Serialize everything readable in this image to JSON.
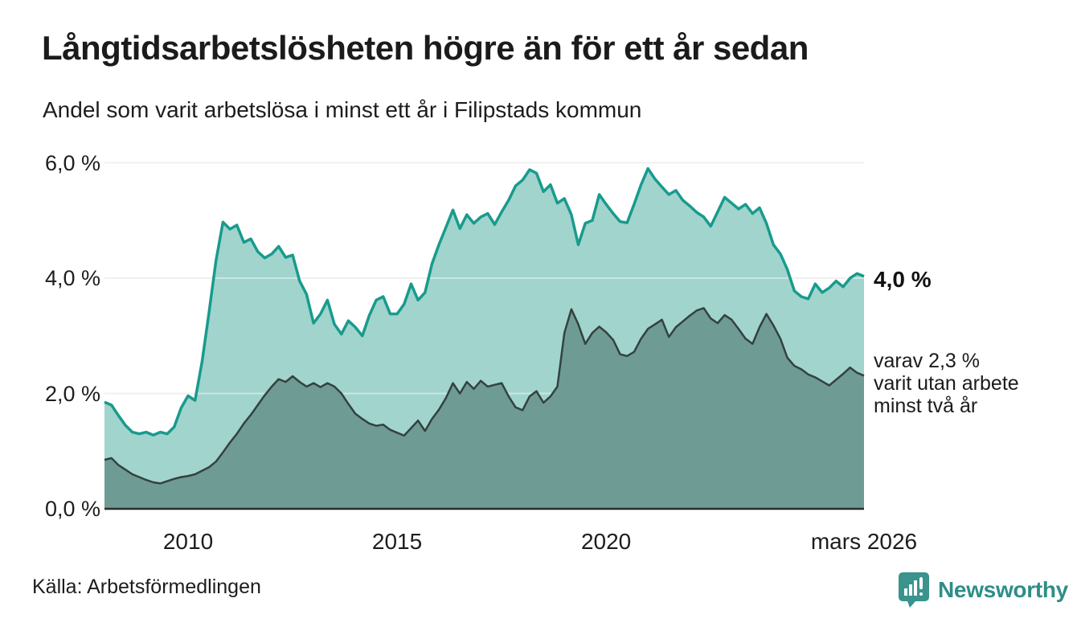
{
  "header": {
    "title": "Långtidsarbetslösheten högre än för ett år sedan",
    "subtitle": "Andel som varit arbetslösa i minst ett år i Filipstads kommun"
  },
  "chart_data": {
    "type": "area",
    "title": "Långtidsarbetslösheten högre än för ett år sedan",
    "subtitle": "Andel som varit arbetslösa i minst ett år i Filipstads kommun",
    "x_range_years": {
      "start": 2008.0,
      "end": 2026.17
    },
    "ylim": [
      0,
      6.2
    ],
    "grid": true,
    "y_axis": {
      "ticks": [
        {
          "value": 6.0,
          "label": "6,0 %"
        },
        {
          "value": 4.0,
          "label": "4,0 %"
        },
        {
          "value": 2.0,
          "label": "2,0 %"
        },
        {
          "value": 0.0,
          "label": "0,0 %"
        }
      ]
    },
    "x_axis": {
      "ticks": [
        {
          "year": 2010,
          "label": "2010"
        },
        {
          "year": 2015,
          "label": "2015"
        },
        {
          "year": 2020,
          "label": "2020"
        },
        {
          "year": 2026.17,
          "label": "mars 2026"
        }
      ]
    },
    "series": [
      {
        "name": "Andel arbetslösa minst ett år",
        "fill": "#a1d4cd",
        "line": "#189b8d",
        "line_width": 3.5,
        "end_value_label": "4,0 %",
        "values": [
          1.85,
          1.8,
          1.62,
          1.45,
          1.33,
          1.3,
          1.33,
          1.28,
          1.33,
          1.3,
          1.42,
          1.75,
          1.96,
          1.88,
          2.55,
          3.4,
          4.3,
          4.97,
          4.85,
          4.92,
          4.62,
          4.68,
          4.46,
          4.35,
          4.42,
          4.55,
          4.36,
          4.4,
          3.95,
          3.72,
          3.22,
          3.38,
          3.62,
          3.2,
          3.03,
          3.26,
          3.15,
          3.0,
          3.35,
          3.62,
          3.68,
          3.38,
          3.38,
          3.55,
          3.9,
          3.62,
          3.75,
          4.25,
          4.58,
          4.88,
          5.18,
          4.86,
          5.1,
          4.95,
          5.06,
          5.12,
          4.93,
          5.15,
          5.35,
          5.6,
          5.7,
          5.88,
          5.82,
          5.5,
          5.62,
          5.3,
          5.38,
          5.1,
          4.58,
          4.95,
          5.0,
          5.45,
          5.28,
          5.12,
          4.98,
          4.96,
          5.28,
          5.62,
          5.9,
          5.72,
          5.58,
          5.45,
          5.52,
          5.35,
          5.25,
          5.14,
          5.06,
          4.9,
          5.15,
          5.4,
          5.3,
          5.2,
          5.28,
          5.12,
          5.22,
          4.95,
          4.58,
          4.42,
          4.15,
          3.78,
          3.68,
          3.64,
          3.9,
          3.75,
          3.83,
          3.95,
          3.85,
          4.0,
          4.08,
          4.03
        ]
      },
      {
        "name": "varav utan arbete minst två år",
        "fill": "#6f9b95",
        "line": "#33423f",
        "line_width": 2.5,
        "end_value_label": "varav 2,3 % varit utan arbete minst två år",
        "values": [
          0.85,
          0.88,
          0.76,
          0.68,
          0.6,
          0.55,
          0.5,
          0.46,
          0.44,
          0.48,
          0.52,
          0.55,
          0.57,
          0.6,
          0.66,
          0.72,
          0.82,
          0.98,
          1.15,
          1.3,
          1.48,
          1.63,
          1.8,
          1.97,
          2.12,
          2.25,
          2.2,
          2.3,
          2.2,
          2.12,
          2.18,
          2.11,
          2.18,
          2.12,
          2.0,
          1.82,
          1.65,
          1.56,
          1.48,
          1.44,
          1.46,
          1.37,
          1.32,
          1.27,
          1.4,
          1.53,
          1.35,
          1.56,
          1.72,
          1.92,
          2.18,
          2.0,
          2.2,
          2.08,
          2.22,
          2.12,
          2.15,
          2.18,
          1.95,
          1.76,
          1.71,
          1.95,
          2.04,
          1.84,
          1.95,
          2.12,
          3.05,
          3.46,
          3.2,
          2.86,
          3.05,
          3.16,
          3.06,
          2.93,
          2.68,
          2.65,
          2.72,
          2.95,
          3.12,
          3.2,
          3.28,
          2.98,
          3.15,
          3.25,
          3.35,
          3.44,
          3.48,
          3.3,
          3.22,
          3.36,
          3.28,
          3.12,
          2.95,
          2.86,
          3.15,
          3.38,
          3.18,
          2.95,
          2.62,
          2.48,
          2.42,
          2.33,
          2.28,
          2.21,
          2.14,
          2.24,
          2.34,
          2.45,
          2.36,
          2.31
        ]
      }
    ],
    "annotations": {
      "total_label": "4,0 %",
      "sub_lines": [
        "varav 2,3 %",
        "varit utan arbete",
        "minst två år"
      ]
    },
    "colors": {
      "grid": "#e4e4e4",
      "axis_line": "#2b2b2b",
      "area_light": "#a1d4cd",
      "area_dark": "#6f9b95",
      "line_teal": "#189b8d",
      "line_dark": "#33423f"
    }
  },
  "footer": {
    "source": "Källa: Arbetsförmedlingen",
    "brand": "Newsworthy",
    "brand_icon": "newsworthy-speech-bubble-bar-chart-icon",
    "brand_color": "#2e8e87"
  }
}
